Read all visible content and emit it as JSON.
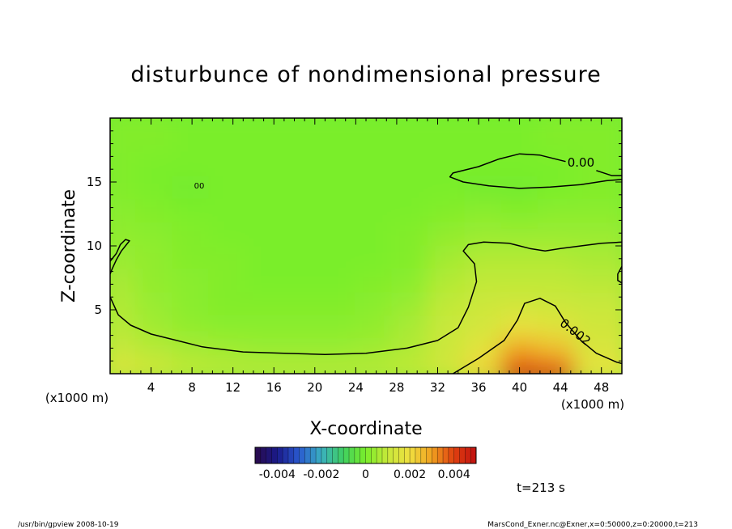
{
  "chart_data": {
    "type": "heatmap",
    "title": "disturbunce of nondimensional pressure",
    "xlabel": "X-coordinate",
    "ylabel": "Z-coordinate",
    "x_unit_note_left": "(x1000 m)",
    "x_unit_note_right": "(x1000 m)",
    "xlim": [
      0,
      50
    ],
    "ylim": [
      0,
      20
    ],
    "xticks": [
      4,
      8,
      12,
      16,
      20,
      24,
      28,
      32,
      36,
      40,
      44,
      48
    ],
    "yticks": [
      5,
      10,
      15
    ],
    "colorscale": {
      "range": [
        -0.005,
        0.005
      ],
      "ticks": [
        "-0.004",
        "-0.002",
        "0",
        "0.002",
        "0.004"
      ],
      "stops": [
        "#2a0a4a",
        "#1a1a8a",
        "#2a5ad0",
        "#3ab0c0",
        "#40d060",
        "#7aee2a",
        "#c8e83a",
        "#f0e040",
        "#f0a020",
        "#e04010",
        "#c01010"
      ]
    },
    "grid": [
      [
        0.0015,
        0.0012,
        0.0009,
        0.0008,
        0.0008,
        0.0008,
        0.0008,
        0.0008,
        0.0009,
        0.0012,
        0.0022,
        0.0042,
        0.004,
        0.0018
      ],
      [
        0.001,
        0.0008,
        0.0006,
        0.0005,
        0.0004,
        0.0004,
        0.0004,
        0.0005,
        0.0007,
        0.0011,
        0.0017,
        0.003,
        0.0026,
        0.0014
      ],
      [
        0.0008,
        0.0005,
        0.0003,
        0.0002,
        0.0002,
        0.0002,
        0.0002,
        0.0003,
        0.0006,
        0.001,
        0.0013,
        0.0018,
        0.0016,
        0.0012
      ],
      [
        0.0007,
        0.0004,
        0.0002,
        0.0001,
        0.0001,
        0.0001,
        0.0001,
        0.0002,
        0.0004,
        0.0009,
        0.0011,
        0.0012,
        0.0011,
        0.001
      ],
      [
        0.0006,
        0.0003,
        0.0002,
        0.0001,
        0.0,
        0.0,
        0.0,
        0.0001,
        0.0002,
        0.0007,
        0.0009,
        0.0009,
        0.0009,
        0.0008
      ],
      [
        0.0004,
        0.0003,
        0.0001,
        0.0001,
        0.0,
        0.0,
        0.0,
        0.0,
        0.0001,
        0.0005,
        0.0007,
        0.0007,
        0.0007,
        0.0006
      ],
      [
        0.0003,
        0.0002,
        0.0001,
        0.0,
        0.0,
        0.0,
        0.0,
        0.0,
        0.0001,
        0.0003,
        0.0004,
        0.0004,
        0.0004,
        0.0004
      ],
      [
        0.0002,
        0.0001,
        0.0,
        0.0,
        0.0,
        0.0,
        0.0,
        0.0,
        0.0,
        0.0001,
        0.0002,
        0.0001,
        0.0002,
        0.0002
      ],
      [
        0.0001,
        0.0,
        -0.0001,
        0.0,
        0.0,
        0.0,
        0.0,
        0.0,
        0.0,
        0.0,
        -0.0001,
        -0.0001,
        0.0,
        0.0001
      ],
      [
        0.0001,
        0.0,
        0.0,
        0.0,
        0.0,
        0.0,
        0.0,
        0.0,
        0.0,
        0.0,
        0.0,
        0.0,
        0.0,
        0.0001
      ],
      [
        0.0001,
        0.0001,
        0.0,
        0.0,
        0.0,
        0.0,
        0.0,
        0.0,
        0.0,
        0.0,
        0.0,
        0.0,
        0.0001,
        0.0001
      ]
    ],
    "contours": [
      {
        "level": "0.002",
        "label": "0.002",
        "points": [
          [
            33.5,
            0
          ],
          [
            36,
            1.2
          ],
          [
            38.5,
            2.6
          ],
          [
            39.8,
            4.2
          ],
          [
            40.5,
            5.5
          ],
          [
            42,
            5.9
          ],
          [
            43.5,
            5.3
          ],
          [
            44.5,
            4
          ],
          [
            46,
            2.6
          ],
          [
            47.5,
            1.6
          ],
          [
            49.5,
            0.9
          ],
          [
            50,
            0.8
          ]
        ]
      },
      {
        "level": "0.001",
        "label": "",
        "points": [
          [
            0,
            6
          ],
          [
            0.8,
            4.6
          ],
          [
            2,
            3.8
          ],
          [
            4,
            3.1
          ],
          [
            6.5,
            2.6
          ],
          [
            9,
            2.1
          ],
          [
            13,
            1.7
          ],
          [
            17,
            1.6
          ],
          [
            21,
            1.5
          ],
          [
            25,
            1.6
          ],
          [
            29,
            2.0
          ],
          [
            32,
            2.6
          ],
          [
            34,
            3.6
          ],
          [
            35,
            5.2
          ],
          [
            35.8,
            7.2
          ],
          [
            35.6,
            8.6
          ],
          [
            34.5,
            9.6
          ],
          [
            35,
            10.1
          ],
          [
            36.5,
            10.3
          ],
          [
            39,
            10.2
          ],
          [
            41,
            9.8
          ],
          [
            42.5,
            9.6
          ],
          [
            44,
            9.8
          ],
          [
            46,
            10.0
          ],
          [
            48,
            10.2
          ],
          [
            50,
            10.3
          ]
        ]
      },
      {
        "level": "0.001b",
        "label": "",
        "points": [
          [
            0,
            8.8
          ],
          [
            0.6,
            9.4
          ],
          [
            1,
            10.1
          ],
          [
            1.5,
            10.5
          ],
          [
            1.9,
            10.4
          ],
          [
            1.6,
            10.1
          ],
          [
            1.1,
            9.6
          ],
          [
            0.6,
            8.9
          ],
          [
            0.2,
            8.2
          ],
          [
            0,
            7.8
          ]
        ]
      },
      {
        "level": "0.001c",
        "label": "",
        "points": [
          [
            50,
            8.4
          ],
          [
            49.6,
            7.8
          ],
          [
            49.6,
            7.3
          ],
          [
            50,
            7.1
          ]
        ]
      },
      {
        "level": "0.00",
        "label": "0.00",
        "points": [
          [
            44.5,
            16.6
          ],
          [
            42,
            17.1
          ],
          [
            40,
            17.2
          ],
          [
            38,
            16.8
          ],
          [
            36,
            16.2
          ],
          [
            33.5,
            15.7
          ],
          [
            33.2,
            15.4
          ],
          [
            34.5,
            15.0
          ],
          [
            37,
            14.7
          ],
          [
            40,
            14.5
          ],
          [
            43,
            14.6
          ],
          [
            46,
            14.8
          ],
          [
            48.5,
            15.1
          ],
          [
            50,
            15.2
          ]
        ]
      },
      {
        "level": "0.00b",
        "label": "",
        "points": [
          [
            47.5,
            15.9
          ],
          [
            49,
            15.5
          ],
          [
            50,
            15.5
          ]
        ]
      }
    ],
    "small_contour_label": "00",
    "small_contour_at": [
      8.7,
      14.5
    ],
    "time_label": "t=213 s",
    "footer_left": "/usr/bin/gpview  2008-10-19",
    "footer_right": "MarsCond_Exner.nc@Exner,x=0:50000,z=0:20000,t=213"
  }
}
